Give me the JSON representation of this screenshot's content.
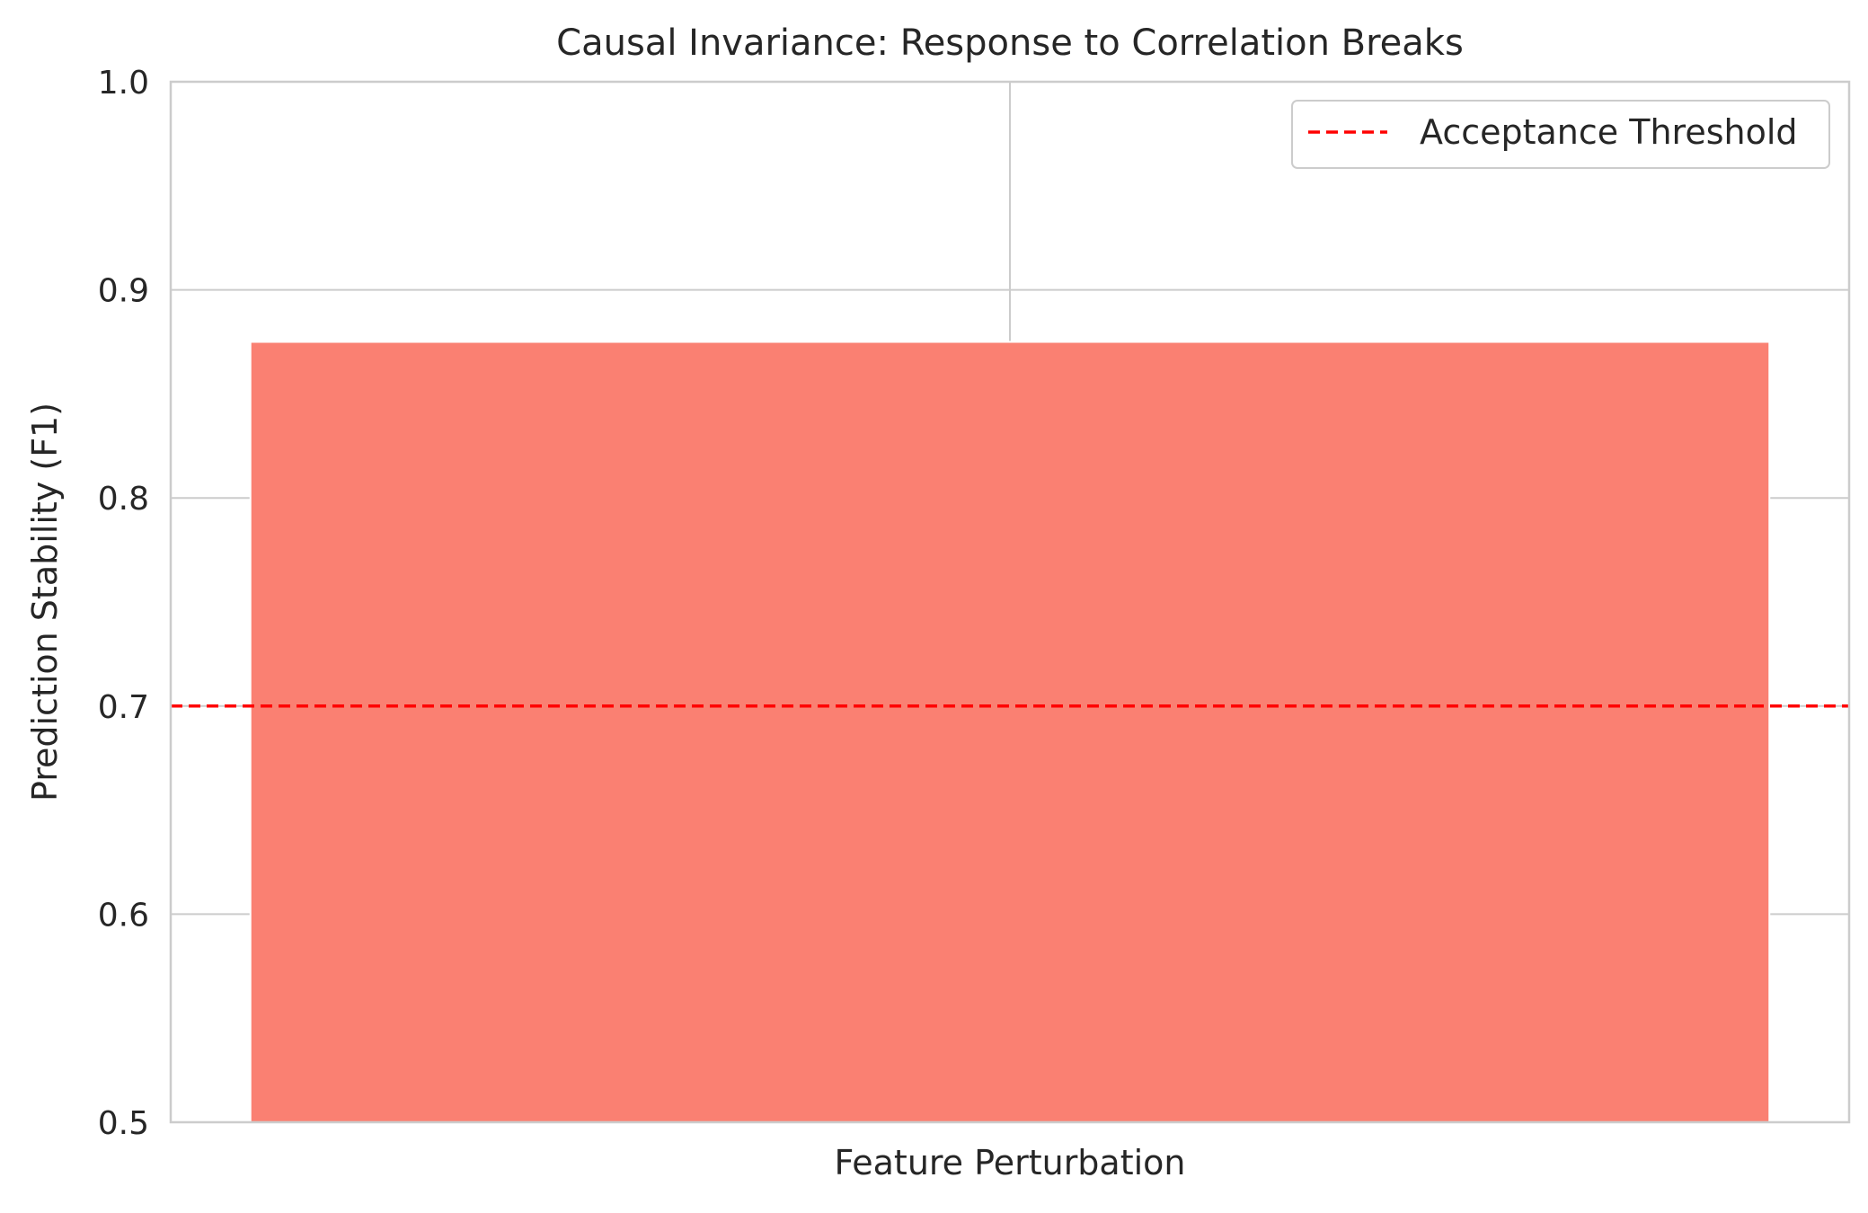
{
  "chart_data": {
    "type": "bar",
    "title": "Causal Invariance: Response to Correlation Breaks",
    "xlabel": "",
    "ylabel": "Prediction Stability (F1)",
    "categories": [
      "Feature Perturbation"
    ],
    "values": [
      0.875
    ],
    "ylim": [
      0.5,
      1.0
    ],
    "yticks": [
      "0.5",
      "0.6",
      "0.7",
      "0.8",
      "0.9",
      "1.0"
    ],
    "grid": true,
    "bar_color": "#fa8072",
    "threshold": {
      "label": "Acceptance Threshold",
      "value": 0.7,
      "color": "#ff0000",
      "style": "dashed"
    },
    "legend": {
      "placement": "top-right"
    }
  }
}
